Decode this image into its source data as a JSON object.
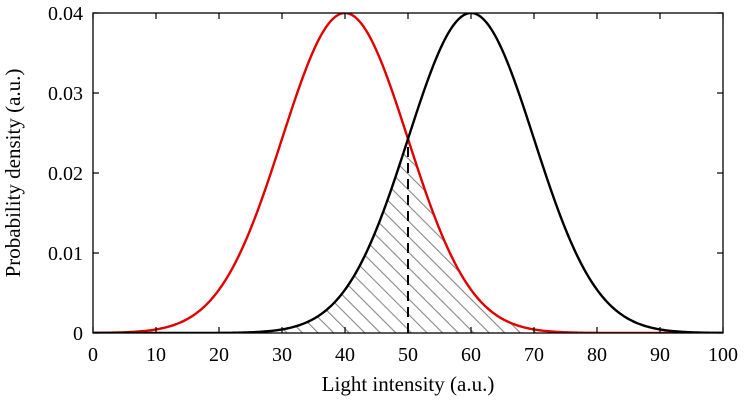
{
  "chart_data": {
    "type": "line",
    "title": "",
    "xlabel": "Light intensity (a.u.)",
    "ylabel": "Probability density (a.u.)",
    "xlim": [
      0,
      100
    ],
    "ylim": [
      0,
      0.04
    ],
    "x_ticks": [
      0,
      10,
      20,
      30,
      40,
      50,
      60,
      70,
      80,
      90,
      100
    ],
    "y_ticks": [
      0,
      0.01,
      0.02,
      0.03,
      0.04
    ],
    "x_tick_labels": [
      "0",
      "10",
      "20",
      "30",
      "40",
      "50",
      "60",
      "70",
      "80",
      "90",
      "100"
    ],
    "y_tick_labels": [
      "0",
      "0.01",
      "0.02",
      "0.03",
      "0.04"
    ],
    "grid": false,
    "series": [
      {
        "name": "distribution-red",
        "kind": "gaussian",
        "mean": 40,
        "std": 10,
        "peak": 0.04,
        "color": "#e00000"
      },
      {
        "name": "distribution-black",
        "kind": "gaussian",
        "mean": 60,
        "std": 10,
        "peak": 0.04,
        "color": "#000000"
      }
    ],
    "threshold": {
      "x": 50,
      "style": "dashed",
      "color": "#000000"
    },
    "overlap_region": {
      "fill": "hatched",
      "color": "#808080"
    }
  }
}
